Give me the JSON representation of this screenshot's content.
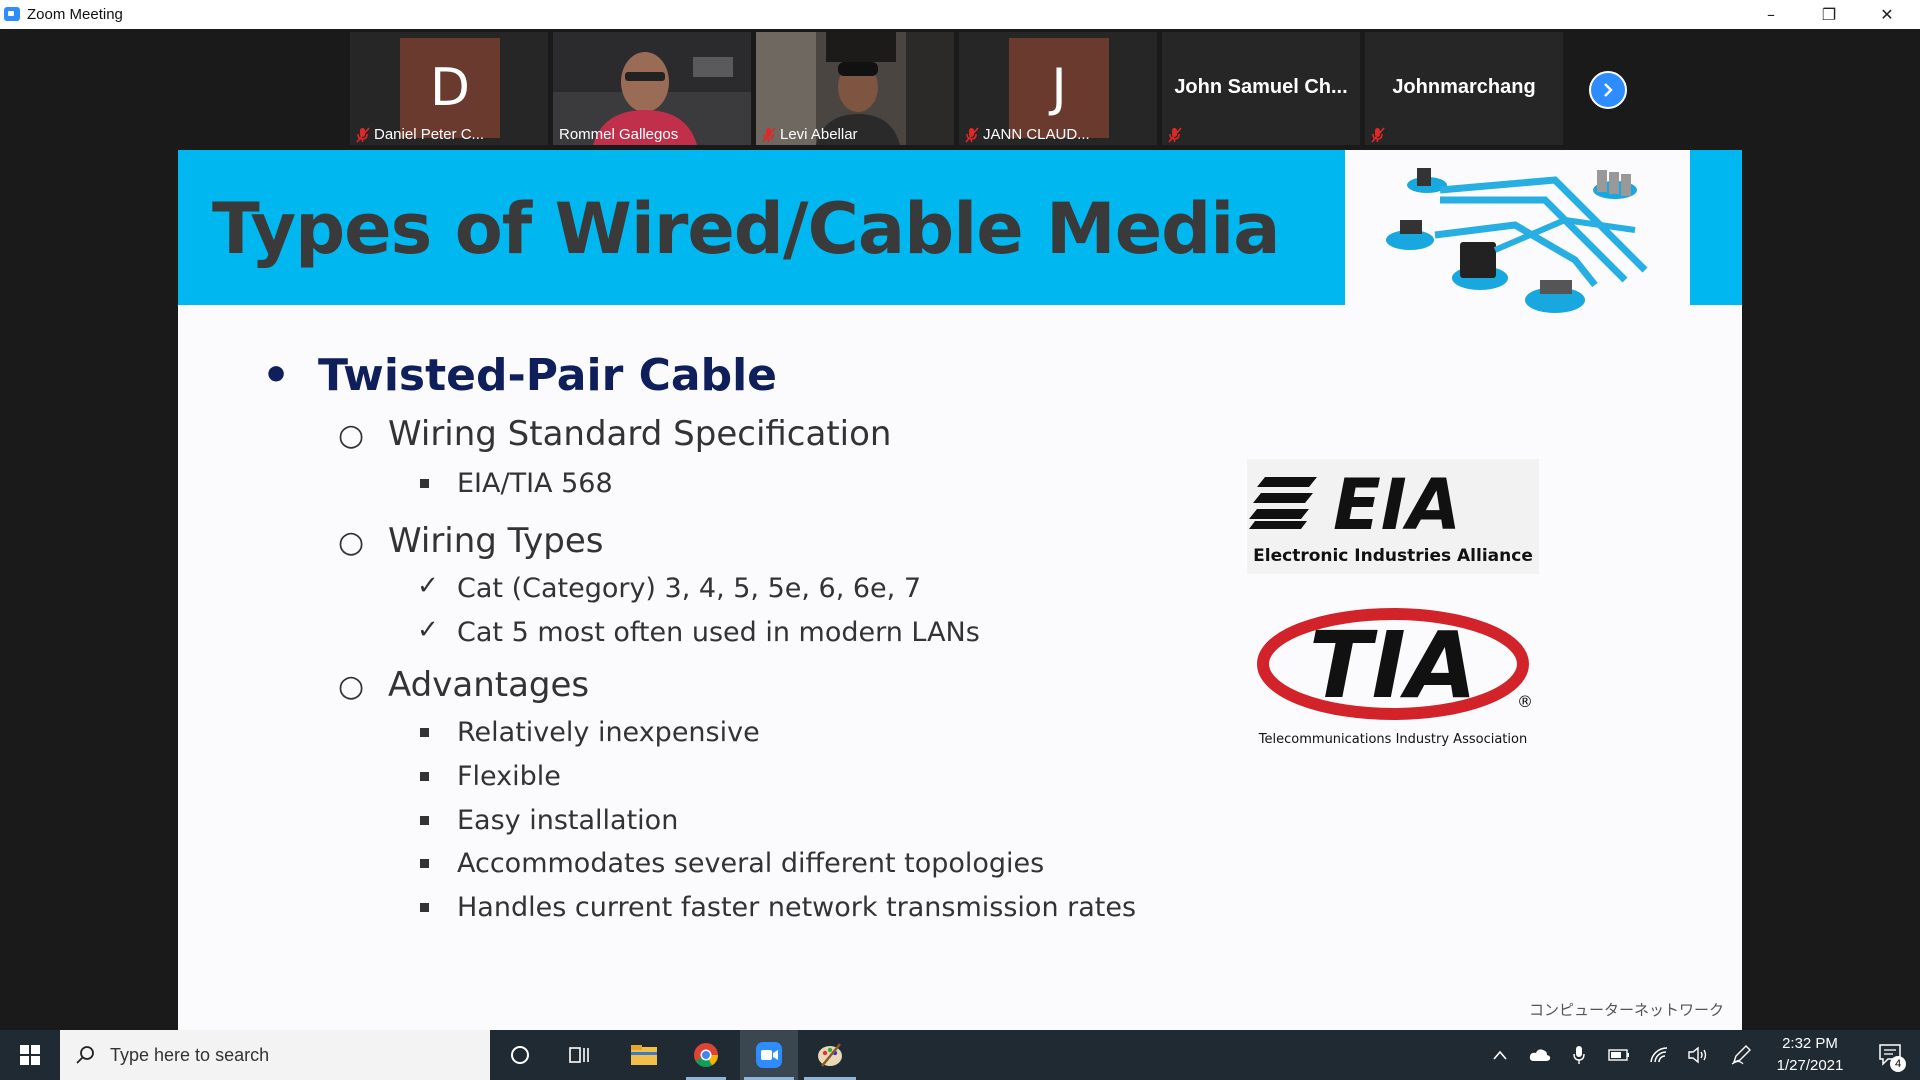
{
  "window": {
    "title": "Zoom Meeting"
  },
  "participants": [
    {
      "name": "Daniel Peter C...",
      "initial": "D",
      "type": "avatar",
      "muted": true
    },
    {
      "name": "Rommel Gallegos",
      "type": "video",
      "muted": false,
      "active": true
    },
    {
      "name": "Levi Abellar",
      "type": "video",
      "muted": true
    },
    {
      "name": "JANN CLAUD...",
      "initial": "J",
      "type": "avatar",
      "muted": true
    },
    {
      "name": "John Samuel Ch...",
      "type": "name-only",
      "muted": true
    },
    {
      "name": "Johnmarchang",
      "type": "name-only",
      "muted": true
    }
  ],
  "slide": {
    "title": "Types of Wired/Cable Media",
    "heading": "Twisted-Pair Cable",
    "sections": [
      {
        "label": "Wiring Standard Specification",
        "items": [
          "EIA/TIA 568"
        ],
        "marker": "square"
      },
      {
        "label": "Wiring Types",
        "items": [
          "Cat (Category) 3, 4, 5, 5e, 6, 6e, 7",
          "Cat 5 most often used in modern LANs"
        ],
        "marker": "check"
      },
      {
        "label": "Advantages",
        "items": [
          "Relatively inexpensive",
          "Flexible",
          "Easy installation",
          "Accommodates several different topologies",
          "Handles current faster network transmission rates"
        ],
        "marker": "square"
      }
    ],
    "logo_eia": {
      "mark": "EIA",
      "caption": "Electronic Industries Alliance"
    },
    "logo_tia": {
      "mark": "TIA",
      "caption": "Telecommunications Industry Association"
    },
    "footer": "コンピューターネットワーク"
  },
  "taskbar": {
    "search_placeholder": "Type here to search",
    "time": "2:32 PM",
    "date": "1/27/2021",
    "notification_count": "4"
  },
  "colors": {
    "slide_header": "#00b7ef",
    "heading": "#0e1f5b",
    "zoom_blue": "#2d8cff"
  }
}
